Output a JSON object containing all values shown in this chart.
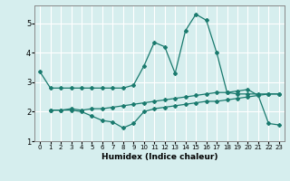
{
  "title": "",
  "xlabel": "Humidex (Indice chaleur)",
  "ylabel": "",
  "background_color": "#d6eeee",
  "grid_color": "#ffffff",
  "line_color": "#1a7a6e",
  "xlim": [
    -0.5,
    23.5
  ],
  "ylim": [
    1,
    5.6
  ],
  "xticks": [
    0,
    1,
    2,
    3,
    4,
    5,
    6,
    7,
    8,
    9,
    10,
    11,
    12,
    13,
    14,
    15,
    16,
    17,
    18,
    19,
    20,
    21,
    22,
    23
  ],
  "yticks": [
    1,
    2,
    3,
    4,
    5
  ],
  "line1_x": [
    0,
    1,
    2,
    3,
    4,
    5,
    6,
    7,
    8,
    9,
    10,
    11,
    12,
    13,
    14,
    15,
    16,
    17,
    18,
    19,
    20,
    21,
    22,
    23
  ],
  "line1_y": [
    3.35,
    2.8,
    2.8,
    2.8,
    2.8,
    2.8,
    2.8,
    2.8,
    2.8,
    2.9,
    3.55,
    4.35,
    4.2,
    3.3,
    4.75,
    5.3,
    5.1,
    4.0,
    2.65,
    2.6,
    2.6,
    2.6,
    2.6,
    2.6
  ],
  "line2_x": [
    1,
    2,
    3,
    4,
    5,
    6,
    7,
    8,
    9,
    10,
    11,
    12,
    13,
    14,
    15,
    16,
    17,
    18,
    19,
    20,
    21,
    22,
    23
  ],
  "line2_y": [
    2.05,
    2.05,
    2.05,
    2.0,
    1.85,
    1.7,
    1.65,
    1.45,
    1.6,
    2.0,
    2.1,
    2.15,
    2.2,
    2.25,
    2.3,
    2.35,
    2.35,
    2.4,
    2.45,
    2.5,
    2.55,
    2.6,
    2.6
  ],
  "line3_x": [
    1,
    2,
    3,
    4,
    5,
    6,
    7,
    8,
    9,
    10,
    11,
    12,
    13,
    14,
    15,
    16,
    17,
    18,
    19,
    20,
    21,
    22,
    23
  ],
  "line3_y": [
    2.05,
    2.05,
    2.1,
    2.05,
    2.1,
    2.1,
    2.15,
    2.2,
    2.25,
    2.3,
    2.35,
    2.4,
    2.45,
    2.5,
    2.55,
    2.6,
    2.65,
    2.65,
    2.7,
    2.75,
    2.55,
    1.6,
    1.55
  ]
}
